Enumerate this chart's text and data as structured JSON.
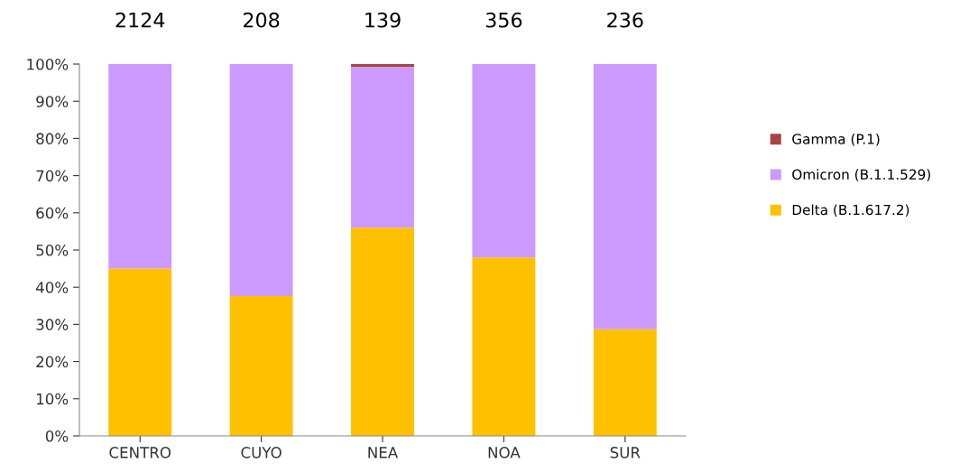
{
  "chart_data": {
    "type": "bar",
    "stacked": true,
    "categories": [
      "CENTRO",
      "CUYO",
      "NEA",
      "NOA",
      "SUR"
    ],
    "series": [
      {
        "name": "Delta (B.1.617.2)",
        "color": "#ffc000",
        "values": [
          45,
          37.6,
          56,
          48,
          28.7
        ]
      },
      {
        "name": "Omicron (B.1.1.529)",
        "color": "#cc99ff",
        "values": [
          55,
          62.4,
          43.3,
          52,
          71.3
        ]
      },
      {
        "name": "Gamma (P.1)",
        "color": "#aa4444",
        "values": [
          0,
          0,
          0.7,
          0,
          0
        ]
      }
    ],
    "annotations": [
      {
        "text": "2124",
        "x": "CENTRO",
        "y": 100
      },
      {
        "text": "208",
        "x": "CUYO",
        "y": 100
      },
      {
        "text": "139",
        "x": "NEA",
        "y": 100
      },
      {
        "text": "356",
        "x": "NOA",
        "y": 100
      },
      {
        "text": "236",
        "x": "SUR",
        "y": 100
      }
    ],
    "ylim": [
      0,
      100
    ],
    "yticks": [
      {
        "value": 0,
        "label": "0%"
      },
      {
        "value": 10,
        "label": "10%"
      },
      {
        "value": 20,
        "label": "20%"
      },
      {
        "value": 30,
        "label": "30%"
      },
      {
        "value": 40,
        "label": "40%"
      },
      {
        "value": 50,
        "label": "50%"
      },
      {
        "value": 60,
        "label": "60%"
      },
      {
        "value": 70,
        "label": "70%"
      },
      {
        "value": 80,
        "label": "80%"
      },
      {
        "value": 90,
        "label": "90%"
      },
      {
        "value": 100,
        "label": "100%"
      }
    ],
    "grid": false,
    "legend": "right"
  }
}
